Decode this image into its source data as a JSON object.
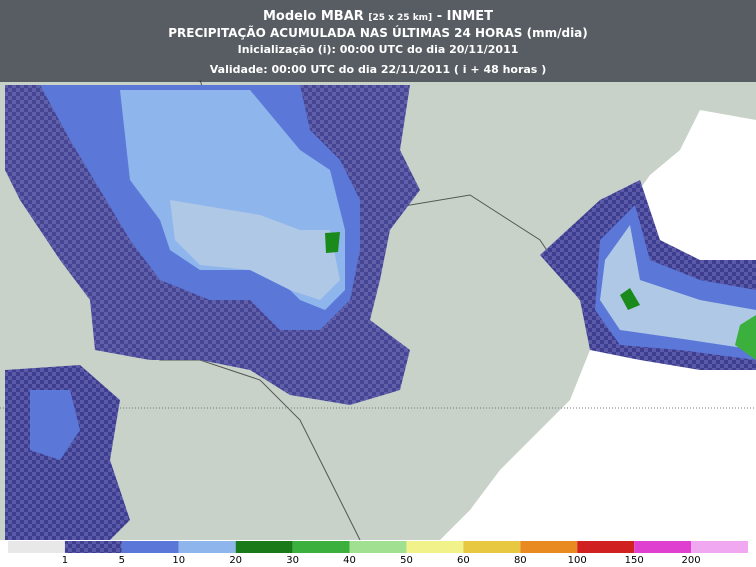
{
  "header": {
    "model": "Modelo MBAR",
    "resolution": "[25 x 25 km]",
    "source": "- INMET",
    "title": "PRECIPITAÇÃO ACUMULADA NAS ÚLTIMAS 24 HORAS (mm/dia)",
    "initialization": "Inicialização (i): 00:00 UTC do dia 20/11/2011",
    "validity": "Validade: 00:00 UTC do dia 22/11/2011 ( i + 48 horas )"
  },
  "legend": {
    "labels": [
      1,
      5,
      10,
      20,
      30,
      40,
      50,
      60,
      80,
      100,
      150,
      200
    ]
  }
}
